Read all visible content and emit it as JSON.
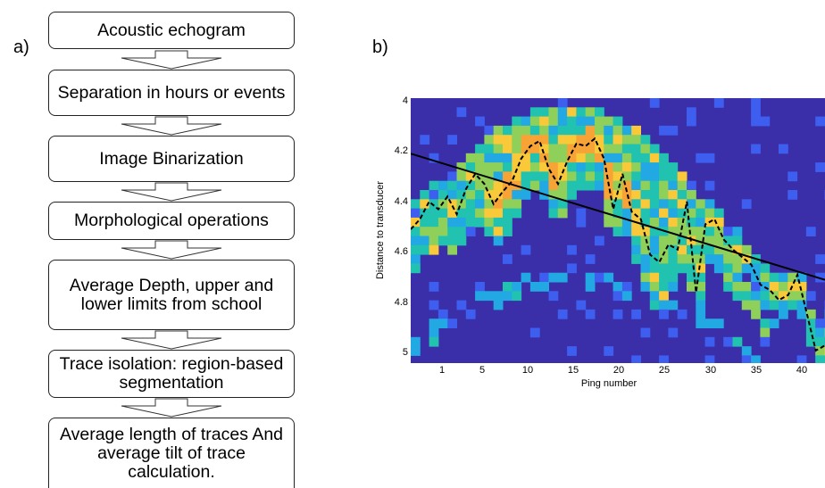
{
  "panel_a": {
    "label": "a)",
    "steps": [
      "Acoustic echogram",
      "Separation in hours or events",
      "Image Binarization",
      "Morphological operations",
      "Average Depth, upper and lower limits from school",
      "Trace isolation: region-based segmentation",
      "Average length of traces And average tilt of trace calculation."
    ]
  },
  "panel_b": {
    "label": "b)"
  },
  "chart_data": {
    "type": "heatmap",
    "xlabel": "Ping number",
    "ylabel": "Distance to transducer",
    "x_ticks": [
      "1",
      "5",
      "10",
      "15",
      "20",
      "25",
      "30",
      "35",
      "40"
    ],
    "y_ticks": [
      "4",
      "4.2",
      "4.4",
      "4.6",
      "4.8",
      "5"
    ],
    "xlim": [
      -1,
      44
    ],
    "ylim": [
      4,
      5.05
    ],
    "colormap": [
      "#3b2fa9",
      "#3e5ef0",
      "#22a8e2",
      "#21c3b0",
      "#8ed05a",
      "#f9c93a",
      "#f8a335"
    ],
    "background_color": "#3b2fa9",
    "series": [
      {
        "style": "dashed",
        "color": "#000000",
        "x": [
          -1,
          0,
          1,
          2,
          3,
          4,
          5,
          6,
          7,
          8,
          9,
          10,
          11,
          12,
          13,
          14,
          15,
          16,
          17,
          18,
          19,
          20,
          21,
          22,
          23,
          24,
          25,
          26,
          27,
          28,
          29,
          30,
          31,
          32,
          33,
          34,
          35,
          36,
          37,
          38,
          39,
          40,
          41,
          42,
          43,
          44
        ],
        "y": [
          4.52,
          4.48,
          4.41,
          4.44,
          4.39,
          4.46,
          4.36,
          4.3,
          4.34,
          4.42,
          4.37,
          4.33,
          4.24,
          4.19,
          4.17,
          4.28,
          4.34,
          4.25,
          4.18,
          4.19,
          4.16,
          4.24,
          4.44,
          4.3,
          4.45,
          4.48,
          4.62,
          4.65,
          4.58,
          4.6,
          4.41,
          4.77,
          4.5,
          4.48,
          4.56,
          4.6,
          4.63,
          4.66,
          4.74,
          4.76,
          4.8,
          4.78,
          4.7,
          4.85,
          5.0,
          4.98
        ]
      },
      {
        "style": "solid",
        "color": "#000000",
        "x": [
          -1,
          44
        ],
        "y": [
          4.22,
          4.72
        ]
      }
    ]
  }
}
